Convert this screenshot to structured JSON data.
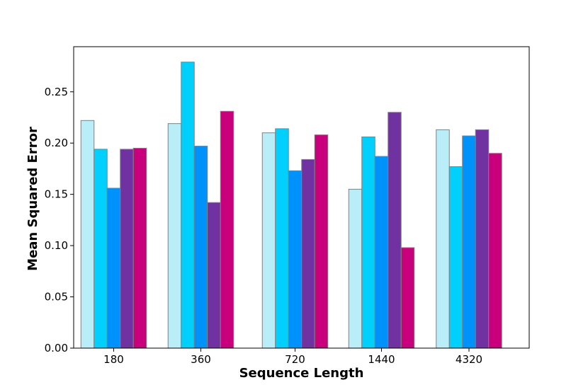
{
  "chart_data": {
    "type": "bar",
    "xlabel": "Sequence Length",
    "ylabel": "Mean Squared Error",
    "categories": [
      "180",
      "360",
      "720",
      "1440",
      "4320"
    ],
    "ylim": [
      0,
      0.294
    ],
    "yticks": [
      "0.00",
      "0.05",
      "0.10",
      "0.15",
      "0.20",
      "0.25"
    ],
    "legend": "none",
    "grid": false,
    "series": [
      {
        "color": "#b9eef9",
        "values": [
          0.222,
          0.219,
          0.21,
          0.155,
          0.213
        ]
      },
      {
        "color": "#00d0fb",
        "values": [
          0.194,
          0.279,
          0.214,
          0.206,
          0.177
        ]
      },
      {
        "color": "#0092fb",
        "values": [
          0.156,
          0.197,
          0.173,
          0.187,
          0.207
        ]
      },
      {
        "color": "#7032a0",
        "values": [
          0.194,
          0.142,
          0.184,
          0.23,
          0.213
        ]
      },
      {
        "color": "#c8007b",
        "values": [
          0.195,
          0.231,
          0.208,
          0.098,
          0.19
        ]
      }
    ]
  }
}
